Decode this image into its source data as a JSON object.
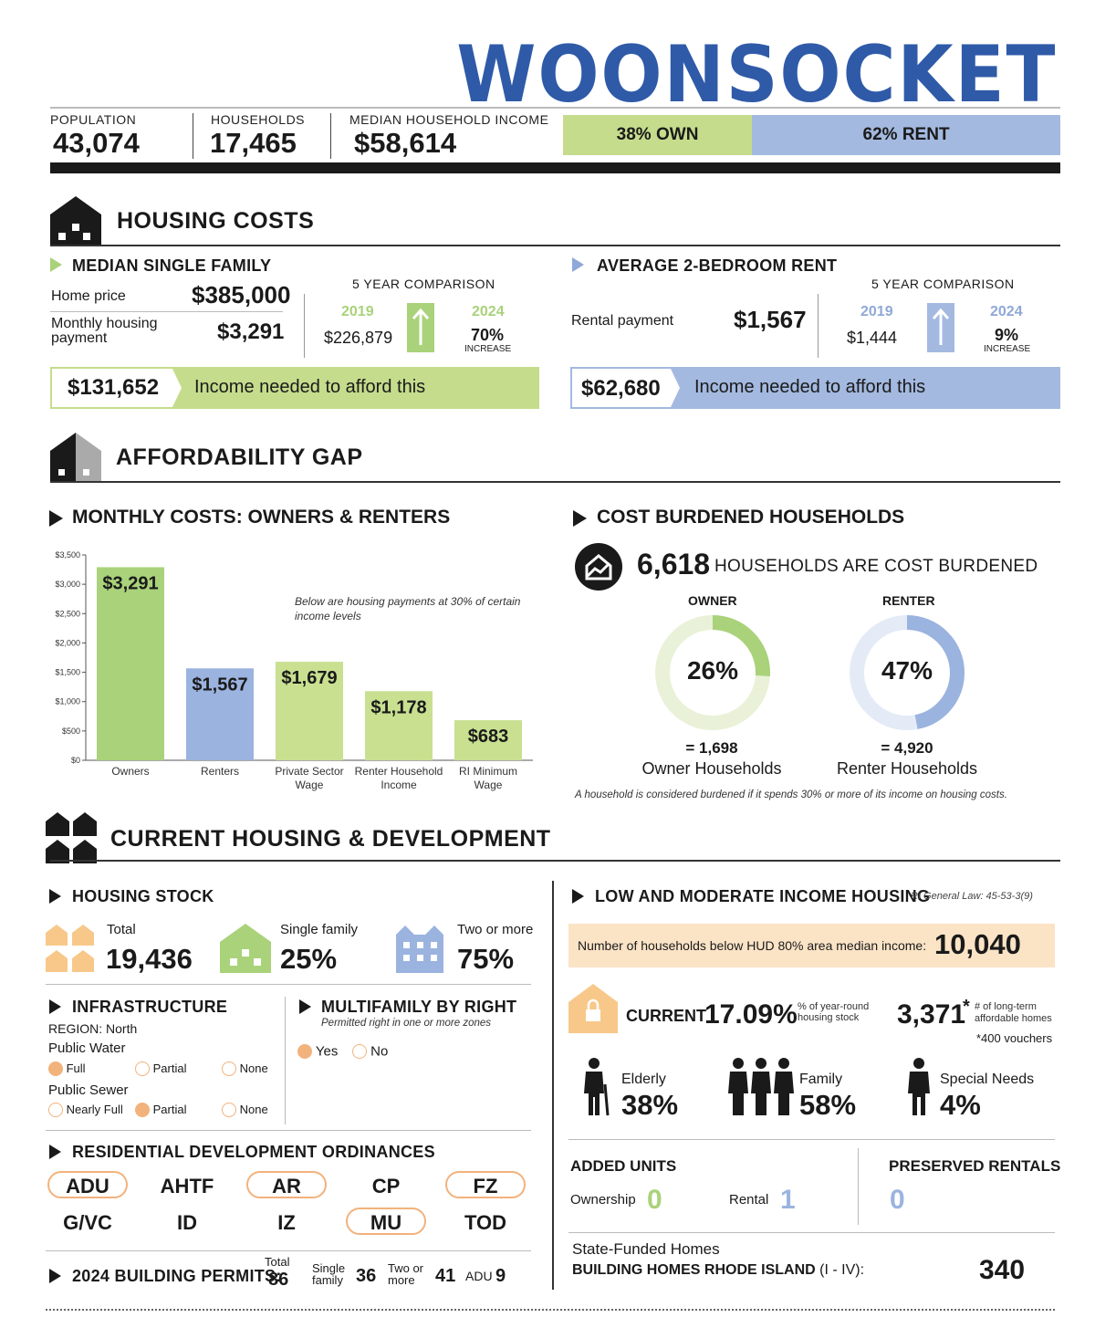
{
  "title": "WOONSOCKET",
  "stats": {
    "population_label": "POPULATION",
    "population": "43,074",
    "households_label": "HOUSEHOLDS",
    "households": "17,465",
    "income_label": "MEDIAN HOUSEHOLD INCOME",
    "income": "$58,614",
    "own": "38% OWN",
    "own_pct": 38,
    "rent": "62% RENT",
    "rent_pct": 62
  },
  "colors": {
    "green": "#c5dc8c",
    "blue": "#a3b9e0",
    "dark": "#1a1a1a",
    "orange": "#f2b27c",
    "peach": "#fbe3c6",
    "title_blue": "#2f5aa8"
  },
  "housing_costs": {
    "heading": "HOUSING COSTS",
    "single_family": {
      "heading": "MEDIAN SINGLE FAMILY",
      "home_price_label": "Home price",
      "home_price": "$385,000",
      "monthly_label_1": "Monthly housing",
      "monthly_label_2": "payment",
      "monthly": "$3,291",
      "comparison_label": "5 YEAR COMPARISON",
      "year1": "2019",
      "year1_value": "$226,879",
      "year2": "2024",
      "change": "70%",
      "change_label": "INCREASE",
      "income_needed": "$131,652",
      "income_needed_label": "Income needed to afford this"
    },
    "rent": {
      "heading": "AVERAGE 2-BEDROOM RENT",
      "rental_label": "Rental payment",
      "rental": "$1,567",
      "comparison_label": "5 YEAR COMPARISON",
      "year1": "2019",
      "year1_value": "$1,444",
      "year2": "2024",
      "change": "9%",
      "change_label": "INCREASE",
      "income_needed": "$62,680",
      "income_needed_label": "Income needed to afford this"
    }
  },
  "affordability": {
    "heading": "AFFORDABILITY GAP",
    "monthly_heading": "MONTHLY COSTS: OWNERS & RENTERS",
    "chart_note_1": "Below are housing payments at 30% of certain",
    "chart_note_2": "income levels",
    "cost_heading": "COST BURDENED HOUSEHOLDS",
    "burdened_count": "6,618",
    "burdened_label": "HOUSEHOLDS ARE COST BURDENED",
    "owner_label": "OWNER",
    "renter_label": "RENTER",
    "owner_pct_text": "26%",
    "owner_pct": 26,
    "renter_pct_text": "47%",
    "renter_pct": 47,
    "owner_count": "= 1,698",
    "owner_caption": "Owner Households",
    "renter_count": "= 4,920",
    "renter_caption": "Renter Households",
    "footnote": "A household is considered burdened if it spends 30% or more of its income on housing costs."
  },
  "chart_data": {
    "type": "bar",
    "categories": [
      "Owners",
      "Renters",
      "Private Sector Wage",
      "Renter Household Income",
      "RI Minimum Wage"
    ],
    "category_lines": [
      [
        "Owners"
      ],
      [
        "Renters"
      ],
      [
        "Private Sector",
        "Wage"
      ],
      [
        "Renter Household",
        "Income"
      ],
      [
        "RI Minimum",
        "Wage"
      ]
    ],
    "values": [
      3291,
      1567,
      1679,
      1178,
      683
    ],
    "value_labels": [
      "$3,291",
      "$1,567",
      "$1,679",
      "$1,178",
      "$683"
    ],
    "colors": [
      "#a9d27a",
      "#9bb3df",
      "#c8e090",
      "#c8e090",
      "#c8e090"
    ],
    "ylim": [
      0,
      3500
    ],
    "yticks": [
      "$0",
      "$500",
      "$1,000",
      "$1,500",
      "$2,000",
      "$2,500",
      "$3,000",
      "$3,500"
    ],
    "note": "Below are housing payments at 30% of certain income levels"
  },
  "development": {
    "heading": "CURRENT HOUSING & DEVELOPMENT",
    "stock_heading": "HOUSING STOCK",
    "total_label": "Total",
    "total": "19,436",
    "single_label": "Single family",
    "single": "25%",
    "two_label": "Two or more",
    "two": "75%",
    "infra_heading": "INFRASTRUCTURE",
    "region": "REGION: North",
    "water_label": "Public Water",
    "water_options": [
      "Full",
      "Partial",
      "None"
    ],
    "water_selected": 0,
    "sewer_label": "Public Sewer",
    "sewer_options": [
      "Nearly Full",
      "Partial",
      "None"
    ],
    "sewer_selected": 1,
    "mf_heading": "MULTIFAMILY BY RIGHT",
    "mf_sub": "Permitted right in one or more zones",
    "mf_options": [
      "Yes",
      "No"
    ],
    "mf_selected": 0,
    "ordinances_heading": "RESIDENTIAL DEVELOPMENT ORDINANCES",
    "ordinances": [
      {
        "label": "ADU",
        "active": true
      },
      {
        "label": "AHTF",
        "active": false
      },
      {
        "label": "AR",
        "active": true
      },
      {
        "label": "CP",
        "active": false
      },
      {
        "label": "FZ",
        "active": true
      },
      {
        "label": "G/VC",
        "active": false
      },
      {
        "label": "ID",
        "active": false
      },
      {
        "label": "IZ",
        "active": false
      },
      {
        "label": "MU",
        "active": true
      },
      {
        "label": "TOD",
        "active": false
      }
    ],
    "permits_label": "2024 BUILDING PERMITS:",
    "permits_total_label": "Total",
    "permits_total": "86",
    "permits_single_label_1": "Single",
    "permits_single_label_2": "family",
    "permits_single": "36",
    "permits_two_label_1": "Two or",
    "permits_two_label_2": "more",
    "permits_two": "41",
    "permits_adu_label": "ADU",
    "permits_adu": "9",
    "lmi_heading": "LOW AND MODERATE INCOME HOUSING",
    "lmi_law": "RI General Law: 45-53-3(9)",
    "hud_label": "Number of households below HUD 80% area median income:",
    "hud_value": "10,040",
    "current_label": "CURRENT",
    "current_pct": "17.09%",
    "current_note_1": "% of year-round",
    "current_note_2": "housing stock",
    "ltah": "3,371",
    "ltah_star": "*",
    "ltah_note_1": "# of long-term",
    "ltah_note_2": "affordable homes",
    "vouchers": "*400 vouchers",
    "elderly_label": "Elderly",
    "elderly": "38%",
    "family_label": "Family",
    "family": "58%",
    "special_label": "Special Needs",
    "special": "4%",
    "added_heading": "ADDED UNITS",
    "ownership_label": "Ownership",
    "ownership": "0",
    "rental_label": "Rental",
    "rental": "1",
    "preserved_heading": "PRESERVED RENTALS",
    "preserved": "0",
    "state_label": "State-Funded Homes",
    "bhri_label": "BUILDING HOMES RHODE ISLAND",
    "bhri_range": "(I - IV):",
    "bhri_value": "340"
  }
}
